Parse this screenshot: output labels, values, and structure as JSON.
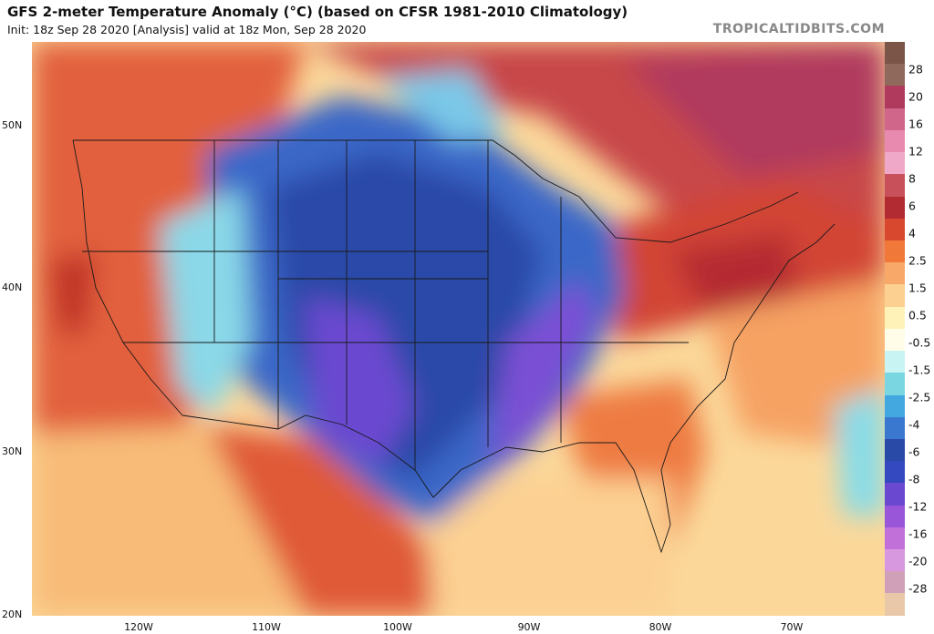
{
  "header": {
    "title": "GFS 2-meter Temperature Anomaly (°C) (based on CFSR 1981-2010 Climatology)",
    "subtitle": "Init: 18z Sep 28 2020   [Analysis]   valid at 18z Mon, Sep 28 2020",
    "credit": "TROPICALTIDBITS.COM"
  },
  "axes": {
    "lat_labels": [
      "50N",
      "40N",
      "30N",
      "20N"
    ],
    "lon_labels": [
      "120W",
      "110W",
      "100W",
      "90W",
      "80W",
      "70W"
    ]
  },
  "colorbar": {
    "labels": [
      "28",
      "20",
      "16",
      "12",
      "8",
      "6",
      "4",
      "2.5",
      "1.5",
      "0.5",
      "-0.5",
      "-1.5",
      "-2.5",
      "-4",
      "-6",
      "-8",
      "-12",
      "-16",
      "-20",
      "-28"
    ],
    "colors": [
      "#7a5548",
      "#8f6a5c",
      "#b03a5e",
      "#d0668a",
      "#e88ab0",
      "#f0a8c8",
      "#c8505a",
      "#b22a32",
      "#d8482e",
      "#f07838",
      "#f8a868",
      "#fcd090",
      "#fff2b8",
      "#fffde8",
      "#c8f4f4",
      "#7ad6e0",
      "#44a8e0",
      "#3a78d0",
      "#2a4aa8",
      "#3448c0",
      "#6a48d0",
      "#9a56d8",
      "#c070d8",
      "#d898e0",
      "#d0a0b8",
      "#e8c8a8"
    ]
  }
}
